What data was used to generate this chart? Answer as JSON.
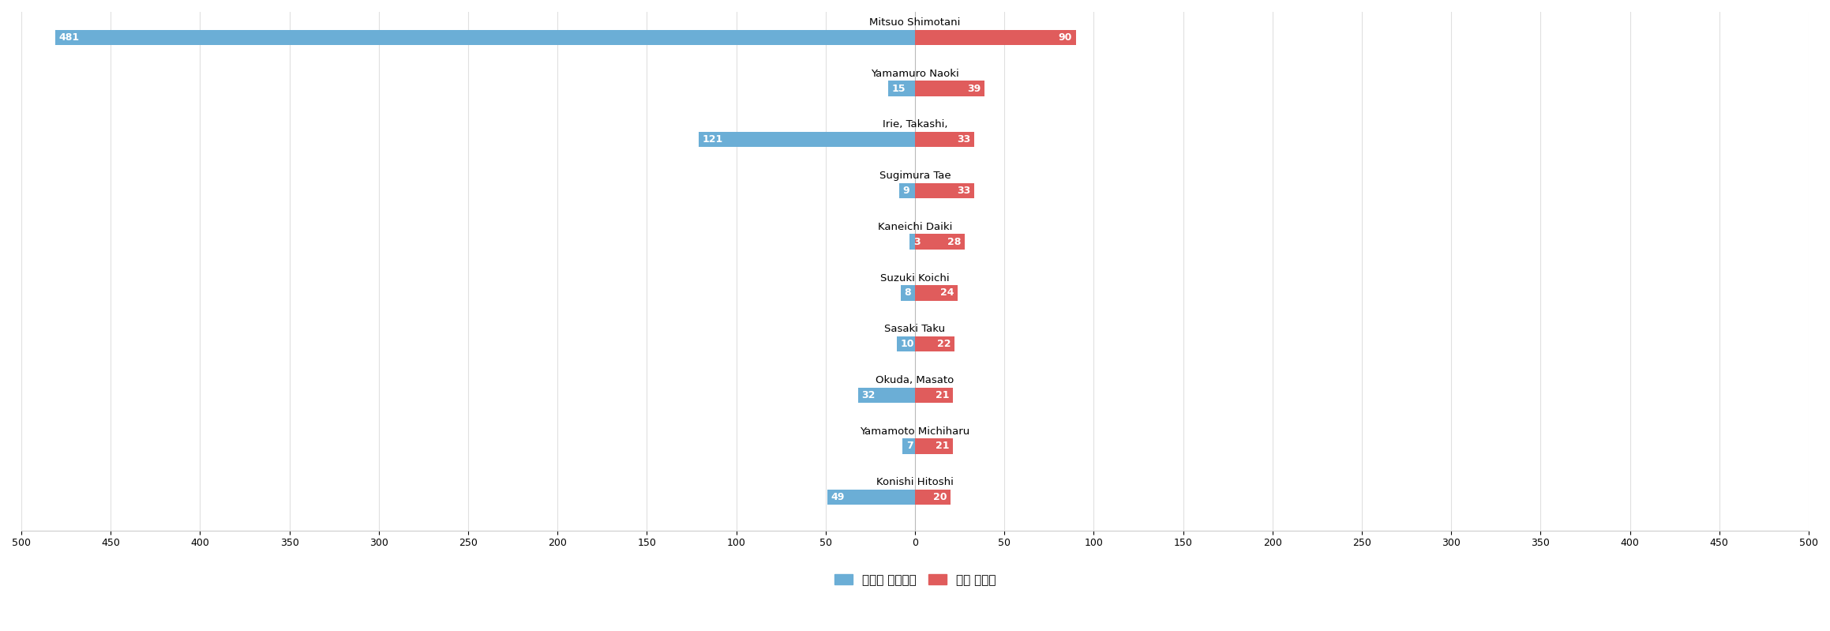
{
  "researchers": [
    "Mitsuo Shimotani",
    "Yamamuro Naoki",
    "Irie, Takashi,",
    "Sugimura Tae",
    "Kaneichi Daiki",
    "Suzuki Koichi",
    "Sasaki Taku",
    "Okuda, Masato",
    "Yamamoto Michiharu",
    "Konishi Hitoshi"
  ],
  "blue_values": [
    481,
    15,
    121,
    9,
    3,
    8,
    10,
    32,
    7,
    49
  ],
  "red_values": [
    90,
    39,
    33,
    33,
    28,
    24,
    22,
    21,
    21,
    20
  ],
  "blue_color": "#6baed6",
  "red_color": "#e05c5c",
  "xlim": 500,
  "legend_blue": "심사관 피인용수",
  "legend_red": "공개 특허수",
  "bar_height": 0.3,
  "label_fontsize": 9,
  "name_fontsize": 9.5,
  "tick_fontsize": 9,
  "fig_width": 23.18,
  "fig_height": 7.99
}
